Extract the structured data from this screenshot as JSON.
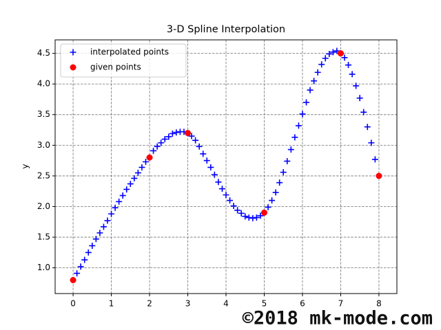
{
  "chart_data": {
    "type": "scatter",
    "title": "3-D Spline Interpolation",
    "y_label": "y",
    "annotation": "©2018 mk-mode.com",
    "xlim": [
      -0.47,
      8.47
    ],
    "ylim": [
      0.58,
      4.72
    ],
    "xticks": [
      0,
      1,
      2,
      3,
      4,
      5,
      6,
      7,
      8
    ],
    "yticks": [
      {
        "value": 1,
        "label": "1.0"
      },
      {
        "value": 1.5,
        "label": "1.5"
      },
      {
        "value": 2,
        "label": "2.0"
      },
      {
        "value": 2.5,
        "label": "2.5"
      },
      {
        "value": 3,
        "label": "3.0"
      },
      {
        "value": 3.5,
        "label": "3.5"
      },
      {
        "value": 4,
        "label": "4.0"
      },
      {
        "value": 4.5,
        "label": "4.5"
      }
    ],
    "grid": true,
    "legend": "upper left",
    "series": [
      {
        "name": "interpolated points",
        "color": "#0000ff",
        "marker": "+",
        "x": [
          0,
          0.1,
          0.2,
          0.3,
          0.4,
          0.5,
          0.6,
          0.7,
          0.8,
          0.9,
          1,
          1.1,
          1.2,
          1.3,
          1.4,
          1.5,
          1.6,
          1.7,
          1.8,
          1.9,
          2,
          2.1,
          2.2,
          2.3,
          2.4,
          2.5,
          2.6,
          2.7,
          2.8,
          2.9,
          3,
          3.1,
          3.2,
          3.3,
          3.4,
          3.5,
          3.6,
          3.7,
          3.8,
          3.9,
          4,
          4.1,
          4.2,
          4.3,
          4.4,
          4.5,
          4.6,
          4.7,
          4.8,
          4.9,
          5,
          5.1,
          5.2,
          5.3,
          5.4,
          5.5,
          5.6,
          5.7,
          5.8,
          5.9,
          6,
          6.1,
          6.2,
          6.3,
          6.4,
          6.5,
          6.6,
          6.7,
          6.8,
          6.9,
          7,
          7.1,
          7.2,
          7.3,
          7.4,
          7.5,
          7.6,
          7.7,
          7.8,
          7.9
        ],
        "values": [
          0.8,
          0.91,
          1.02,
          1.13,
          1.25,
          1.36,
          1.47,
          1.57,
          1.67,
          1.77,
          1.88,
          1.98,
          2.08,
          2.18,
          2.28,
          2.37,
          2.46,
          2.55,
          2.64,
          2.73,
          2.8,
          2.91,
          2.98,
          3.04,
          3.1,
          3.14,
          3.19,
          3.21,
          3.22,
          3.22,
          3.2,
          3.15,
          3.08,
          2.98,
          2.86,
          2.75,
          2.64,
          2.52,
          2.4,
          2.29,
          2.19,
          2.1,
          2.01,
          1.94,
          1.89,
          1.84,
          1.82,
          1.81,
          1.82,
          1.85,
          1.9,
          1.99,
          2.1,
          2.23,
          2.39,
          2.56,
          2.74,
          2.93,
          3.13,
          3.32,
          3.51,
          3.7,
          3.9,
          4.05,
          4.19,
          4.32,
          4.42,
          4.49,
          4.52,
          4.54,
          4.5,
          4.43,
          4.31,
          4.16,
          3.97,
          3.77,
          3.54,
          3.3,
          3.04,
          2.77
        ]
      },
      {
        "name": "given points",
        "color": "#ff0000",
        "marker": "o",
        "x": [
          0,
          2,
          3,
          5,
          7,
          8
        ],
        "values": [
          0.8,
          2.8,
          3.2,
          1.9,
          4.5,
          2.5
        ]
      }
    ]
  }
}
